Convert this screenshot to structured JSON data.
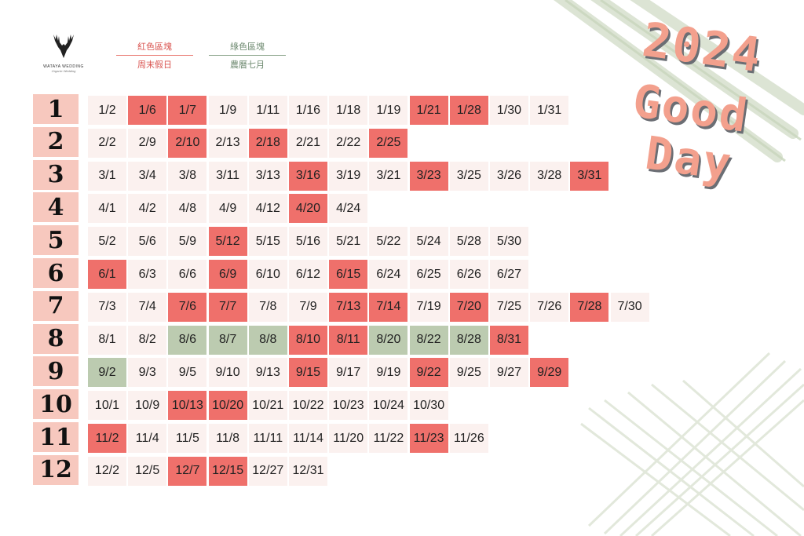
{
  "logo": {
    "name": "WATAYA WEDDING",
    "tagline": "Organic Wedding"
  },
  "legend": [
    {
      "top": "紅色區塊",
      "bottom": "周末假日",
      "kind": "red"
    },
    {
      "top": "綠色區塊",
      "bottom": "農曆七月",
      "kind": "green"
    }
  ],
  "title": {
    "line1": "2024",
    "line2": "Good",
    "line3": "Day"
  },
  "colors": {
    "red": "#ef706b",
    "green": "#bccbb0",
    "plain": "#fbf1ef",
    "month": "#f7c8be",
    "title": "#f3a08d"
  },
  "months": [
    {
      "label": "1",
      "days": [
        [
          "1/2",
          ""
        ],
        [
          "1/6",
          "r"
        ],
        [
          "1/7",
          "r"
        ],
        [
          "1/9",
          ""
        ],
        [
          "1/11",
          ""
        ],
        [
          "1/16",
          ""
        ],
        [
          "1/18",
          ""
        ],
        [
          "1/19",
          ""
        ],
        [
          "1/21",
          "r"
        ],
        [
          "1/28",
          "r"
        ],
        [
          "1/30",
          ""
        ],
        [
          "1/31",
          ""
        ]
      ]
    },
    {
      "label": "2",
      "days": [
        [
          "2/2",
          ""
        ],
        [
          "2/9",
          ""
        ],
        [
          "2/10",
          "r"
        ],
        [
          "2/13",
          ""
        ],
        [
          "2/18",
          "r"
        ],
        [
          "2/21",
          ""
        ],
        [
          "2/22",
          ""
        ],
        [
          "2/25",
          "r"
        ]
      ]
    },
    {
      "label": "3",
      "days": [
        [
          "3/1",
          ""
        ],
        [
          "3/4",
          ""
        ],
        [
          "3/8",
          ""
        ],
        [
          "3/11",
          ""
        ],
        [
          "3/13",
          ""
        ],
        [
          "3/16",
          "r"
        ],
        [
          "3/19",
          ""
        ],
        [
          "3/21",
          ""
        ],
        [
          "3/23",
          "r"
        ],
        [
          "3/25",
          ""
        ],
        [
          "3/26",
          ""
        ],
        [
          "3/28",
          ""
        ],
        [
          "3/31",
          "r"
        ]
      ]
    },
    {
      "label": "4",
      "days": [
        [
          "4/1",
          ""
        ],
        [
          "4/2",
          ""
        ],
        [
          "4/8",
          ""
        ],
        [
          "4/9",
          ""
        ],
        [
          "4/12",
          ""
        ],
        [
          "4/20",
          "r"
        ],
        [
          "4/24",
          ""
        ]
      ]
    },
    {
      "label": "5",
      "days": [
        [
          "5/2",
          ""
        ],
        [
          "5/6",
          ""
        ],
        [
          "5/9",
          ""
        ],
        [
          "5/12",
          "r"
        ],
        [
          "5/15",
          ""
        ],
        [
          "5/16",
          ""
        ],
        [
          "5/21",
          ""
        ],
        [
          "5/22",
          ""
        ],
        [
          "5/24",
          ""
        ],
        [
          "5/28",
          ""
        ],
        [
          "5/30",
          ""
        ]
      ]
    },
    {
      "label": "6",
      "days": [
        [
          "6/1",
          "r"
        ],
        [
          "6/3",
          ""
        ],
        [
          "6/6",
          ""
        ],
        [
          "6/9",
          "r"
        ],
        [
          "6/10",
          ""
        ],
        [
          "6/12",
          ""
        ],
        [
          "6/15",
          "r"
        ],
        [
          "6/24",
          ""
        ],
        [
          "6/25",
          ""
        ],
        [
          "6/26",
          ""
        ],
        [
          "6/27",
          ""
        ]
      ]
    },
    {
      "label": "7",
      "days": [
        [
          "7/3",
          ""
        ],
        [
          "7/4",
          ""
        ],
        [
          "7/6",
          "r"
        ],
        [
          "7/7",
          "r"
        ],
        [
          "7/8",
          ""
        ],
        [
          "7/9",
          ""
        ],
        [
          "7/13",
          "r"
        ],
        [
          "7/14",
          "r"
        ],
        [
          "7/19",
          ""
        ],
        [
          "7/20",
          "r"
        ],
        [
          "7/25",
          ""
        ],
        [
          "7/26",
          ""
        ],
        [
          "7/28",
          "r"
        ],
        [
          "7/30",
          ""
        ]
      ]
    },
    {
      "label": "8",
      "days": [
        [
          "8/1",
          ""
        ],
        [
          "8/2",
          ""
        ],
        [
          "8/6",
          "g"
        ],
        [
          "8/7",
          "g"
        ],
        [
          "8/8",
          "g"
        ],
        [
          "8/10",
          "r"
        ],
        [
          "8/11",
          "r"
        ],
        [
          "8/20",
          "g"
        ],
        [
          "8/22",
          "g"
        ],
        [
          "8/28",
          "g"
        ],
        [
          "8/31",
          "r"
        ]
      ]
    },
    {
      "label": "9",
      "days": [
        [
          "9/2",
          "g"
        ],
        [
          "9/3",
          ""
        ],
        [
          "9/5",
          ""
        ],
        [
          "9/10",
          ""
        ],
        [
          "9/13",
          ""
        ],
        [
          "9/15",
          "r"
        ],
        [
          "9/17",
          ""
        ],
        [
          "9/19",
          ""
        ],
        [
          "9/22",
          "r"
        ],
        [
          "9/25",
          ""
        ],
        [
          "9/27",
          ""
        ],
        [
          "9/29",
          "r"
        ]
      ]
    },
    {
      "label": "10",
      "days": [
        [
          "10/1",
          ""
        ],
        [
          "10/9",
          ""
        ],
        [
          "10/13",
          "r"
        ],
        [
          "10/20",
          "r"
        ],
        [
          "10/21",
          ""
        ],
        [
          "10/22",
          ""
        ],
        [
          "10/23",
          ""
        ],
        [
          "10/24",
          ""
        ],
        [
          "10/30",
          ""
        ]
      ]
    },
    {
      "label": "11",
      "days": [
        [
          "11/2",
          "r"
        ],
        [
          "11/4",
          ""
        ],
        [
          "11/5",
          ""
        ],
        [
          "11/8",
          ""
        ],
        [
          "11/11",
          ""
        ],
        [
          "11/14",
          ""
        ],
        [
          "11/20",
          ""
        ],
        [
          "11/22",
          ""
        ],
        [
          "11/23",
          "r"
        ],
        [
          "11/26",
          ""
        ]
      ]
    },
    {
      "label": "12",
      "days": [
        [
          "12/2",
          ""
        ],
        [
          "12/5",
          ""
        ],
        [
          "12/7",
          "r"
        ],
        [
          "12/15",
          "r"
        ],
        [
          "12/27",
          ""
        ],
        [
          "12/31",
          ""
        ]
      ]
    }
  ]
}
